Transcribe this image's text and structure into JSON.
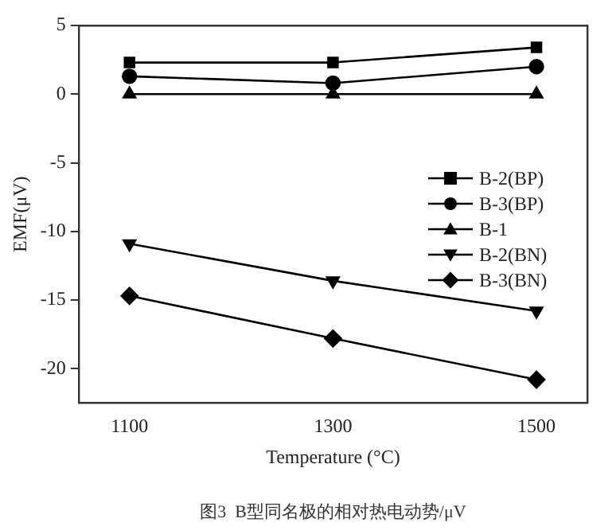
{
  "chart_data": {
    "type": "line",
    "xlabel": "Temperature (°C)",
    "ylabel": "EMF(μV)",
    "annotations": [
      "图3  B型同名极的相对热电动势/μV"
    ],
    "x": [
      1100,
      1300,
      1500
    ],
    "xlim": [
      1050,
      1550
    ],
    "xticks": [
      1100,
      1300,
      1500
    ],
    "ylim": [
      -22.5,
      5
    ],
    "yticks": [
      -20,
      -15,
      -10,
      -5,
      0,
      5
    ],
    "grid": false,
    "legend": "right",
    "line_style": "solid",
    "series": [
      {
        "name": "B-2(BP)",
        "color": "#000000",
        "marker": "square",
        "values": [
          2.3,
          2.3,
          3.4
        ]
      },
      {
        "name": "B-3(BP)",
        "color": "#000000",
        "marker": "circle",
        "values": [
          1.3,
          0.8,
          2.0
        ]
      },
      {
        "name": "B-1",
        "color": "#000000",
        "marker": "triangle",
        "values": [
          0,
          0,
          0
        ]
      },
      {
        "name": "B-2(BN)",
        "color": "#000000",
        "marker": "triangle-down",
        "values": [
          -10.9,
          -13.6,
          -15.8
        ]
      },
      {
        "name": "B-3(BN)",
        "color": "#000000",
        "marker": "diamond",
        "values": [
          -14.7,
          -17.8,
          -20.8
        ]
      }
    ]
  }
}
